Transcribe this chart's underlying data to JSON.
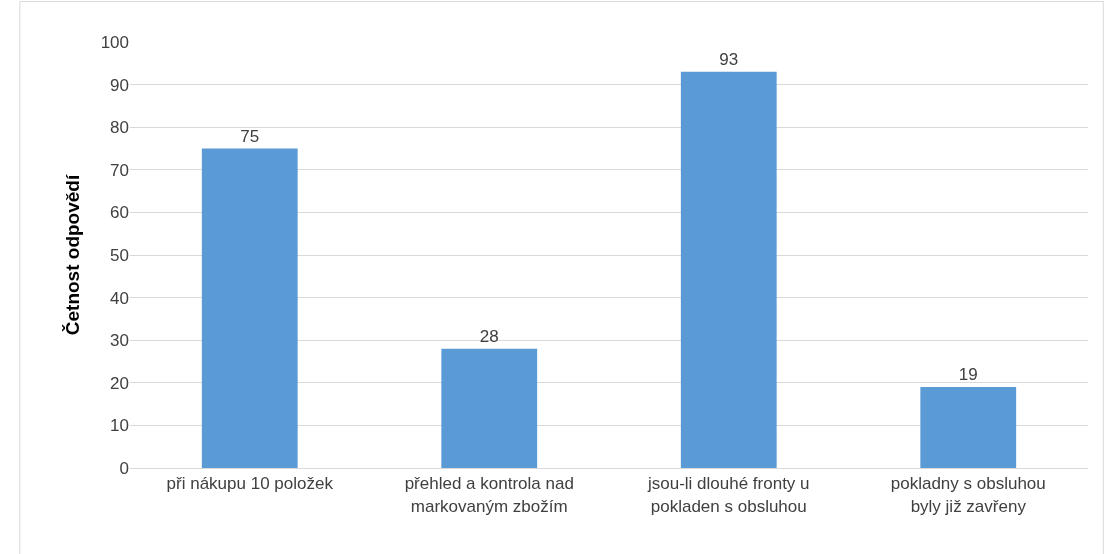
{
  "chart_data": {
    "type": "bar",
    "ylabel": "Četnost odpovědí",
    "categories": [
      "při nákupu 10 položek",
      "přehled a kontrola nad markovaným zbožím",
      "jsou-li dlouhé fronty u pokladen s obsluhou",
      "pokladny s obsluhou byly již zavřeny"
    ],
    "values": [
      75,
      28,
      93,
      19
    ],
    "color": "#5b9bd5",
    "ylim": [
      0,
      100
    ],
    "yticks": [
      0,
      10,
      20,
      30,
      40,
      50,
      60,
      70,
      80,
      90,
      100
    ],
    "grid": "y",
    "data_labels": true
  }
}
